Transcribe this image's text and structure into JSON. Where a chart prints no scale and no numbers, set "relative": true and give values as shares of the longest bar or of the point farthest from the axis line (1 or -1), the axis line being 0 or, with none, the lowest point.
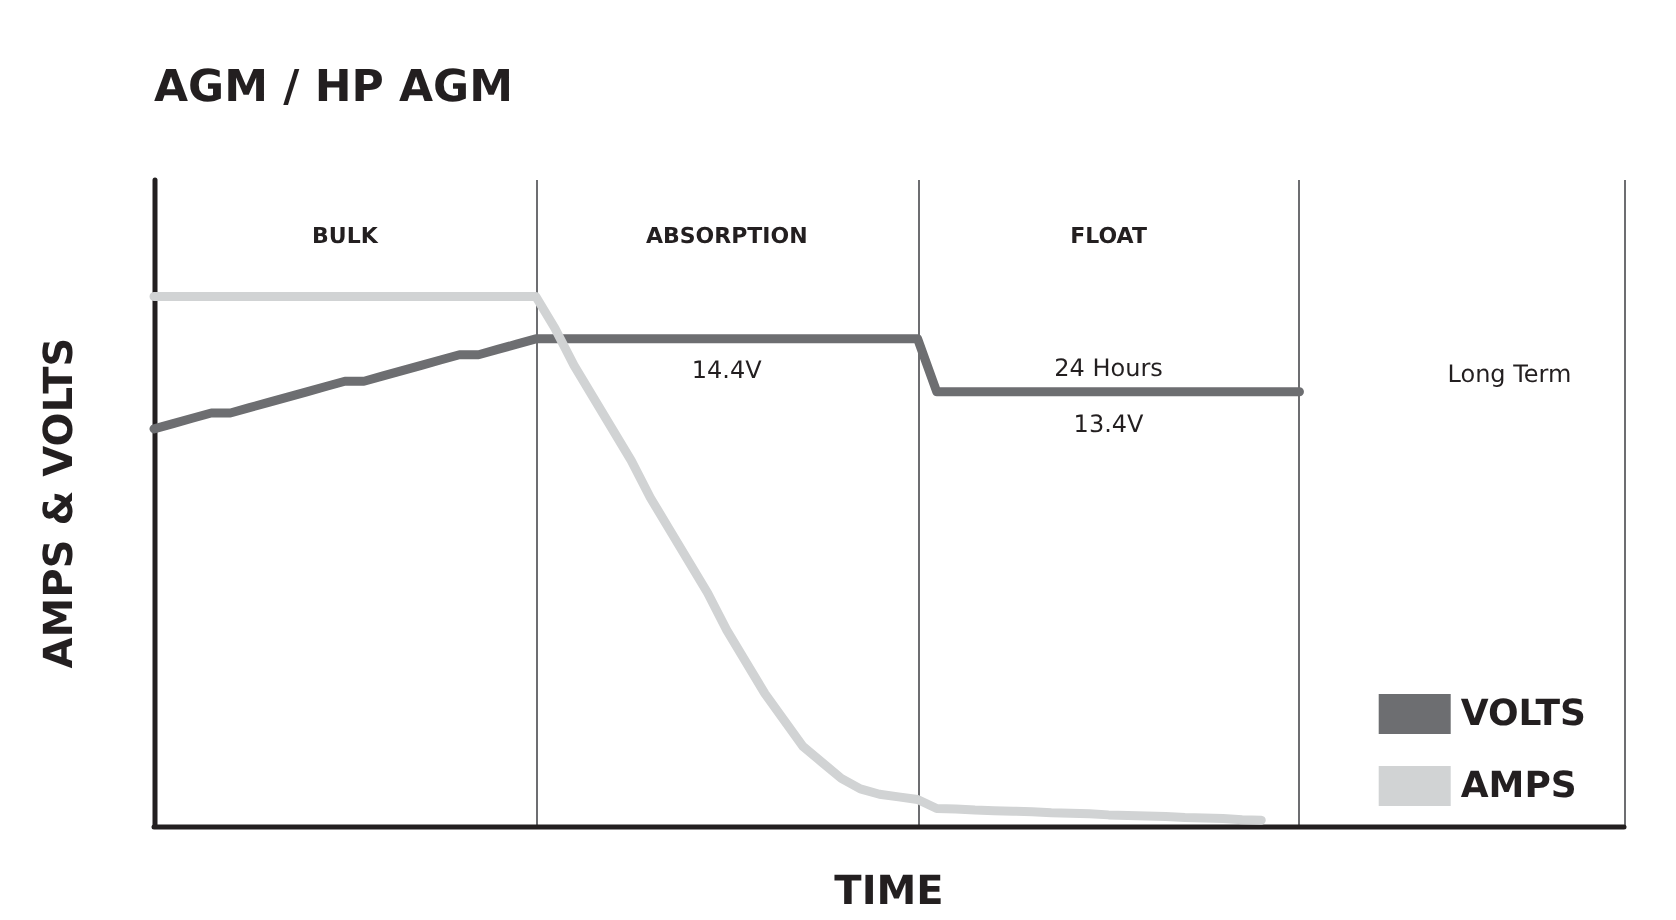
{
  "chart_data": {
    "type": "line",
    "title": "AGM / HP AGM",
    "xlabel": "TIME",
    "ylabel": "AMPS & VOLTS",
    "relative": true,
    "categories": [
      null,
      null,
      null,
      null,
      null,
      null,
      null,
      null,
      null,
      null,
      null,
      null,
      null,
      null,
      null,
      null,
      null,
      null,
      null,
      null,
      null,
      null,
      null,
      null,
      null,
      null,
      null,
      null,
      null,
      null,
      null,
      null,
      null,
      null,
      null,
      null,
      null,
      null,
      null,
      null,
      null,
      null,
      null,
      null,
      null,
      null,
      null,
      null,
      null,
      null,
      null,
      null,
      null,
      null,
      null,
      null,
      null,
      null,
      null,
      null,
      null,
      null,
      null,
      null,
      null,
      null,
      null,
      null,
      null,
      null,
      null,
      null,
      null,
      null,
      null,
      null,
      null,
      null
    ],
    "legend": "bottom right",
    "marker": "none",
    "line_style": "solid",
    "grid": "x",
    "series": [
      {
        "name": "VOLTS",
        "color": "#6d6e71",
        "values": [
          0.75,
          0.76,
          0.77,
          0.78,
          0.78,
          0.79,
          0.8,
          0.81,
          0.82,
          0.83,
          0.84,
          0.84,
          0.85,
          0.86,
          0.87,
          0.88,
          0.89,
          0.89,
          0.9,
          0.91,
          0.92,
          0.92,
          0.92,
          0.92,
          0.92,
          0.92,
          0.92,
          0.92,
          0.92,
          0.92,
          0.92,
          0.92,
          0.92,
          0.92,
          0.92,
          0.92,
          0.92,
          0.92,
          0.92,
          0.92,
          0.92,
          0.82,
          0.82,
          0.82,
          0.82,
          0.82,
          0.82,
          0.82,
          0.82,
          0.82,
          0.82,
          0.82,
          0.82,
          0.82,
          0.82,
          0.82,
          0.82,
          0.82,
          0.82,
          0.82,
          0.82,
          null,
          null,
          null,
          null,
          null,
          null,
          null,
          null,
          null,
          null,
          null,
          null,
          null,
          null,
          null,
          null,
          null
        ]
      },
      {
        "name": "AMPS",
        "color": "#d1d3d4",
        "values": [
          1,
          1,
          1,
          1,
          1,
          1,
          1,
          1,
          1,
          1,
          1,
          1,
          1,
          1,
          1,
          1,
          1,
          1,
          1,
          1,
          1,
          0.94,
          0.87,
          0.81,
          0.75,
          0.69,
          0.62,
          0.56,
          0.5,
          0.44,
          0.37,
          0.31,
          0.25,
          0.2,
          0.15,
          0.12,
          0.09,
          0.07,
          0.06,
          0.055,
          0.05,
          0.033,
          0.032,
          0.03,
          0.029,
          0.028,
          0.027,
          0.025,
          0.024,
          0.023,
          0.021,
          0.02,
          0.019,
          0.018,
          0.016,
          0.015,
          0.014,
          0.012,
          0.011,
          null,
          null,
          null,
          null,
          null,
          null,
          null,
          null,
          null,
          null,
          null,
          null,
          null,
          null,
          null,
          null,
          null,
          null,
          null
        ]
      }
    ],
    "annotations": [
      "BULK",
      "ABSORPTION",
      "FLOAT",
      "14.4V",
      "24 Hours",
      "13.4V",
      "Long Term"
    ]
  }
}
